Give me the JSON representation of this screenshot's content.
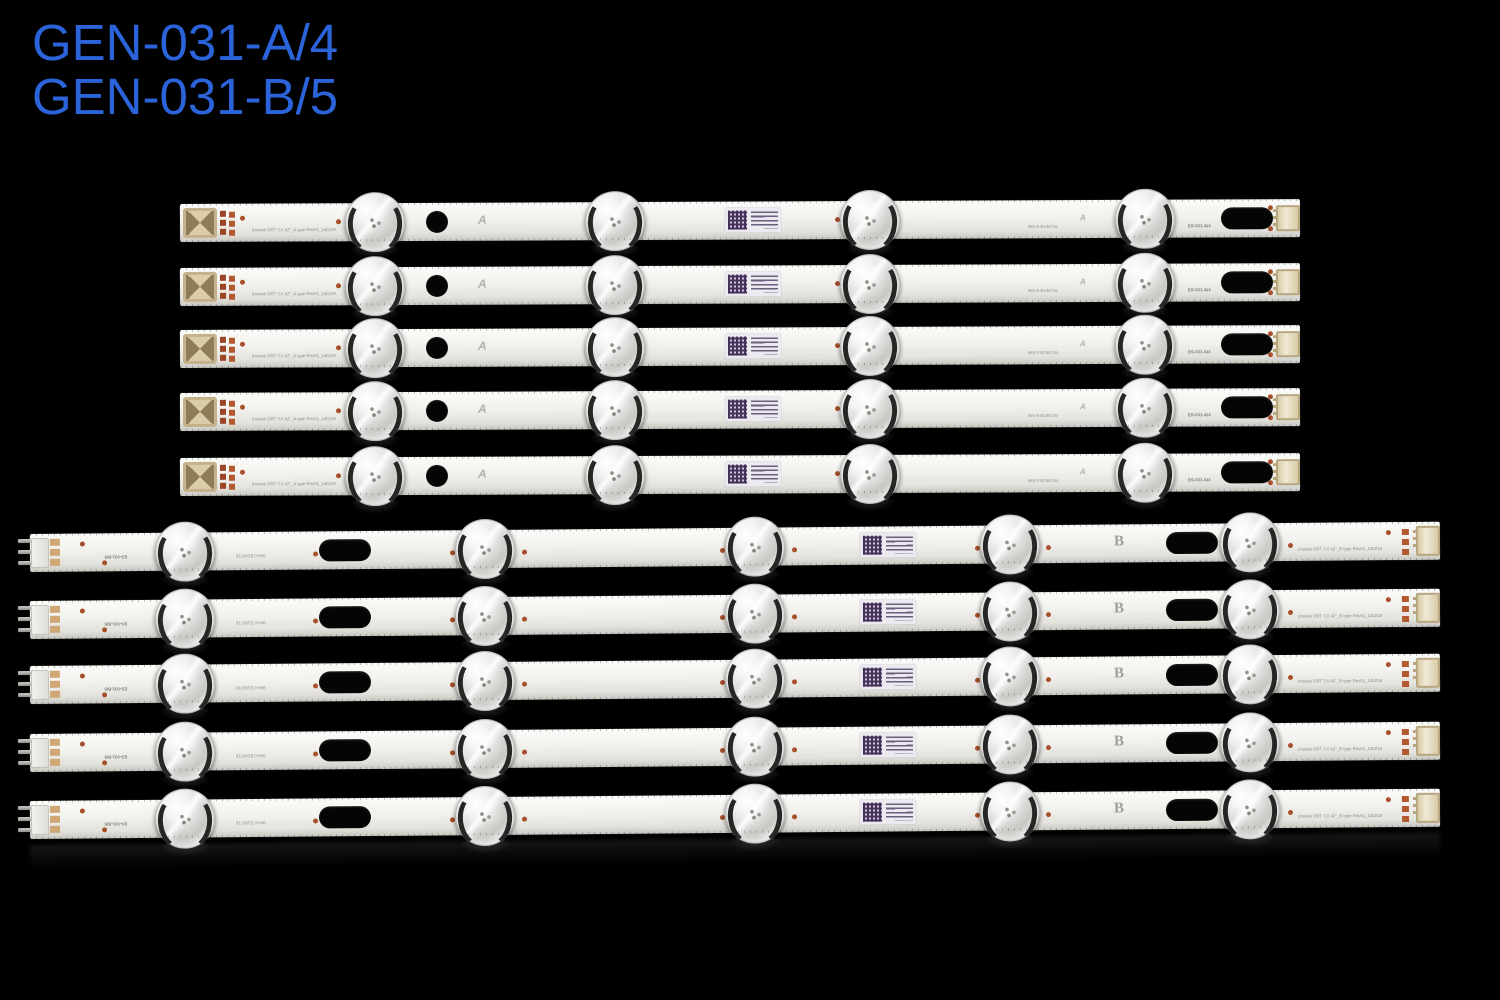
{
  "title": {
    "line1": "GEN-031-A/4",
    "line2": "GEN-031-B/5"
  },
  "colors": {
    "background": "#000000",
    "title_blue": "#2b64da",
    "pcb_white": "#f0efeb",
    "pad_copper": "#a8502c",
    "connector_tan": "#c4b28a",
    "pin_gray": "#b9b9b2",
    "qr_purple": "#443159",
    "silkscreen_gray": "#8f8d86",
    "hole_black": "#050505"
  },
  "strips": {
    "type_a": {
      "count": 5,
      "leds_per_strip": 4,
      "part_label": "ES-031-A/4",
      "logo_letter": "A",
      "marking_innotek": "Innotek DRT 3.0 42\"_A type Rev01_140218",
      "marking_cert": "94V-0 E196716"
    },
    "type_b": {
      "count": 5,
      "leds_per_strip": 5,
      "part_label": "ES-031-B/5",
      "logo_letter": "B",
      "marking_innotek": "Innotek DRT 3.0 42\"_B type Rev01_140218",
      "marking_cert": "94V-0 E196716"
    }
  }
}
